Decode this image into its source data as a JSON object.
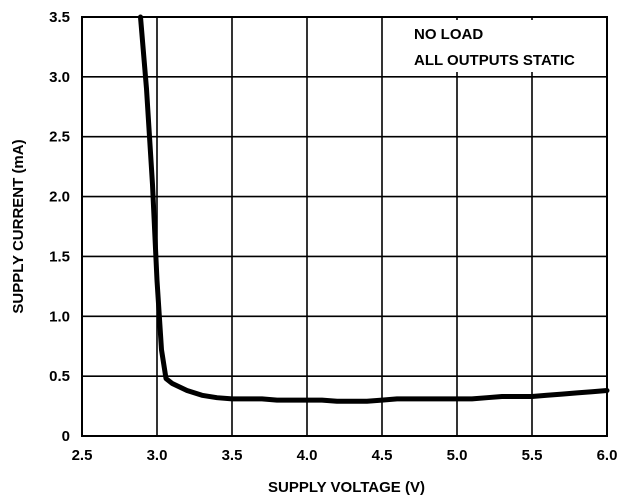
{
  "chart_data": {
    "type": "line",
    "xlabel": "SUPPLY VOLTAGE (V)",
    "ylabel": "SUPPLY CURRENT (mA)",
    "xlim": [
      2.5,
      6.0
    ],
    "ylim": [
      0,
      3.5
    ],
    "x_ticks": [
      "2.5",
      "3.0",
      "3.5",
      "4.0",
      "4.5",
      "5.0",
      "5.5",
      "6.0"
    ],
    "y_ticks": [
      "0",
      "0.5",
      "1.0",
      "1.5",
      "2.0",
      "2.5",
      "3.0",
      "3.5"
    ],
    "grid": true,
    "annotations": [
      "NO LOAD",
      "ALL OUTPUTS STATIC"
    ],
    "annotation_position": "top-right",
    "line_color": "#000000",
    "series": [
      {
        "x": [
          2.89,
          2.93,
          2.97,
          3.0,
          3.03,
          3.06,
          3.1,
          3.2,
          3.3,
          3.4,
          3.5,
          3.6,
          3.7,
          3.8,
          3.9,
          4.0,
          4.1,
          4.2,
          4.3,
          4.4,
          4.5,
          4.6,
          4.7,
          4.8,
          4.9,
          5.0,
          5.1,
          5.2,
          5.3,
          5.4,
          5.5,
          5.6,
          5.7,
          5.8,
          5.9,
          6.0
        ],
        "y": [
          3.5,
          2.9,
          2.1,
          1.3,
          0.72,
          0.48,
          0.44,
          0.38,
          0.34,
          0.32,
          0.31,
          0.31,
          0.31,
          0.3,
          0.3,
          0.3,
          0.3,
          0.29,
          0.29,
          0.29,
          0.3,
          0.31,
          0.31,
          0.31,
          0.31,
          0.31,
          0.31,
          0.32,
          0.33,
          0.33,
          0.33,
          0.34,
          0.35,
          0.36,
          0.37,
          0.38
        ]
      }
    ]
  }
}
